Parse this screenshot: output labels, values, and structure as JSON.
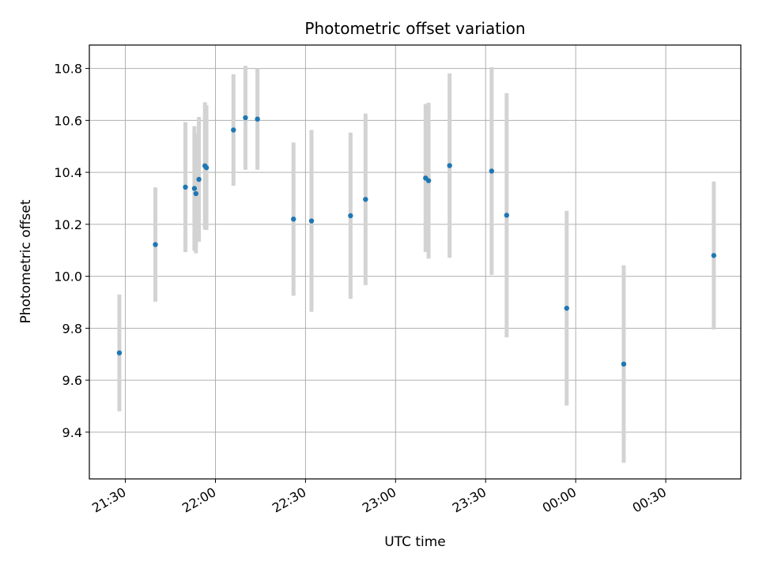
{
  "chart_data": {
    "type": "scatter",
    "title": "Photometric offset variation",
    "xlabel": "UTC time",
    "ylabel": "Photometric offset",
    "grid": true,
    "colors": {
      "points": "#1f77b4",
      "error_bars": "#d3d3d3",
      "grid": "#b0b0b0"
    },
    "x_ticks": [
      "21:30",
      "22:00",
      "22:30",
      "23:00",
      "23:30",
      "00:00",
      "00:30"
    ],
    "y_ticks": [
      "9.4",
      "9.6",
      "9.8",
      "10.0",
      "10.2",
      "10.4",
      "10.6",
      "10.8"
    ],
    "xlim": [
      "21:18",
      "00:55"
    ],
    "ylim": [
      9.22,
      10.89
    ],
    "series": [
      {
        "points": [
          {
            "x": "21:28",
            "y": 9.705,
            "err": 0.225
          },
          {
            "x": "21:40",
            "y": 10.122,
            "err": 0.22
          },
          {
            "x": "21:50",
            "y": 10.343,
            "err": 0.25
          },
          {
            "x": "21:53",
            "y": 10.338,
            "err": 0.24
          },
          {
            "x": "21:53.5",
            "y": 10.318,
            "err": 0.23
          },
          {
            "x": "21:54.5",
            "y": 10.373,
            "err": 0.24
          },
          {
            "x": "21:56.5",
            "y": 10.425,
            "err": 0.245
          },
          {
            "x": "21:57",
            "y": 10.418,
            "err": 0.24
          },
          {
            "x": "22:06",
            "y": 10.563,
            "err": 0.215
          },
          {
            "x": "22:10",
            "y": 10.61,
            "err": 0.2
          },
          {
            "x": "22:14",
            "y": 10.605,
            "err": 0.195
          },
          {
            "x": "22:26",
            "y": 10.22,
            "err": 0.295
          },
          {
            "x": "22:32",
            "y": 10.213,
            "err": 0.35
          },
          {
            "x": "22:45",
            "y": 10.233,
            "err": 0.32
          },
          {
            "x": "22:50",
            "y": 10.296,
            "err": 0.33
          },
          {
            "x": "23:10",
            "y": 10.378,
            "err": 0.285
          },
          {
            "x": "23:11",
            "y": 10.368,
            "err": 0.3
          },
          {
            "x": "23:18",
            "y": 10.426,
            "err": 0.355
          },
          {
            "x": "23:32",
            "y": 10.405,
            "err": 0.4
          },
          {
            "x": "23:37",
            "y": 10.235,
            "err": 0.47
          },
          {
            "x": "23:57",
            "y": 9.877,
            "err": 0.375
          },
          {
            "x": "00:16",
            "y": 9.662,
            "err": 0.38
          },
          {
            "x": "00:46",
            "y": 10.08,
            "err": 0.285
          }
        ]
      }
    ]
  }
}
